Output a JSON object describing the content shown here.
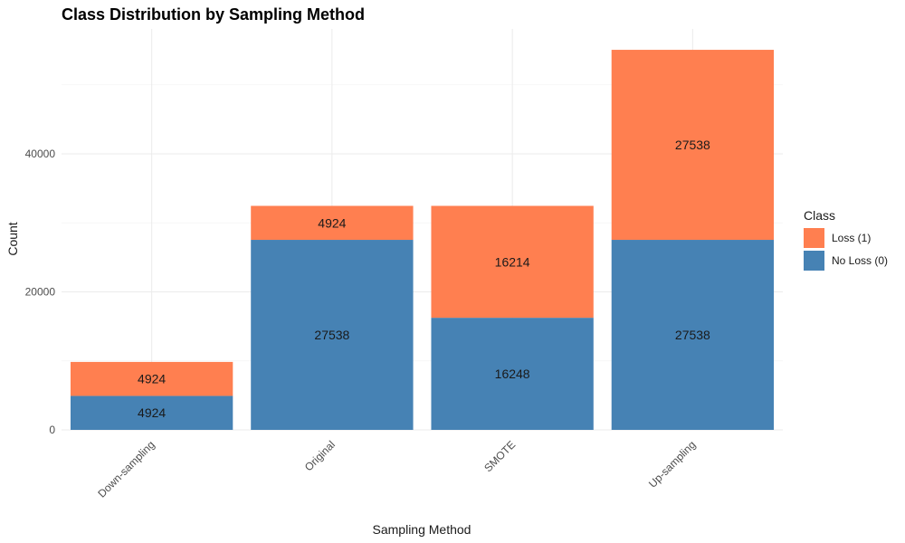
{
  "chart_data": {
    "type": "bar",
    "stacked": true,
    "title": "Class Distribution by Sampling Method",
    "xlabel": "Sampling Method",
    "ylabel": "Count",
    "categories": [
      "Down-sampling",
      "Original",
      "SMOTE",
      "Up-sampling"
    ],
    "series": [
      {
        "name": "No Loss (0)",
        "color": "#4682B4",
        "values": [
          4924,
          27538,
          16248,
          27538
        ]
      },
      {
        "name": "Loss (1)",
        "color": "#FF7F50",
        "values": [
          4924,
          4924,
          16214,
          27538
        ]
      }
    ],
    "ylim": [
      0,
      58000
    ],
    "yticks": [
      0,
      20000,
      40000
    ],
    "grid": true,
    "legend": {
      "title": "Class",
      "placement": "right",
      "order": [
        "Loss (1)",
        "No Loss (0)"
      ]
    }
  }
}
